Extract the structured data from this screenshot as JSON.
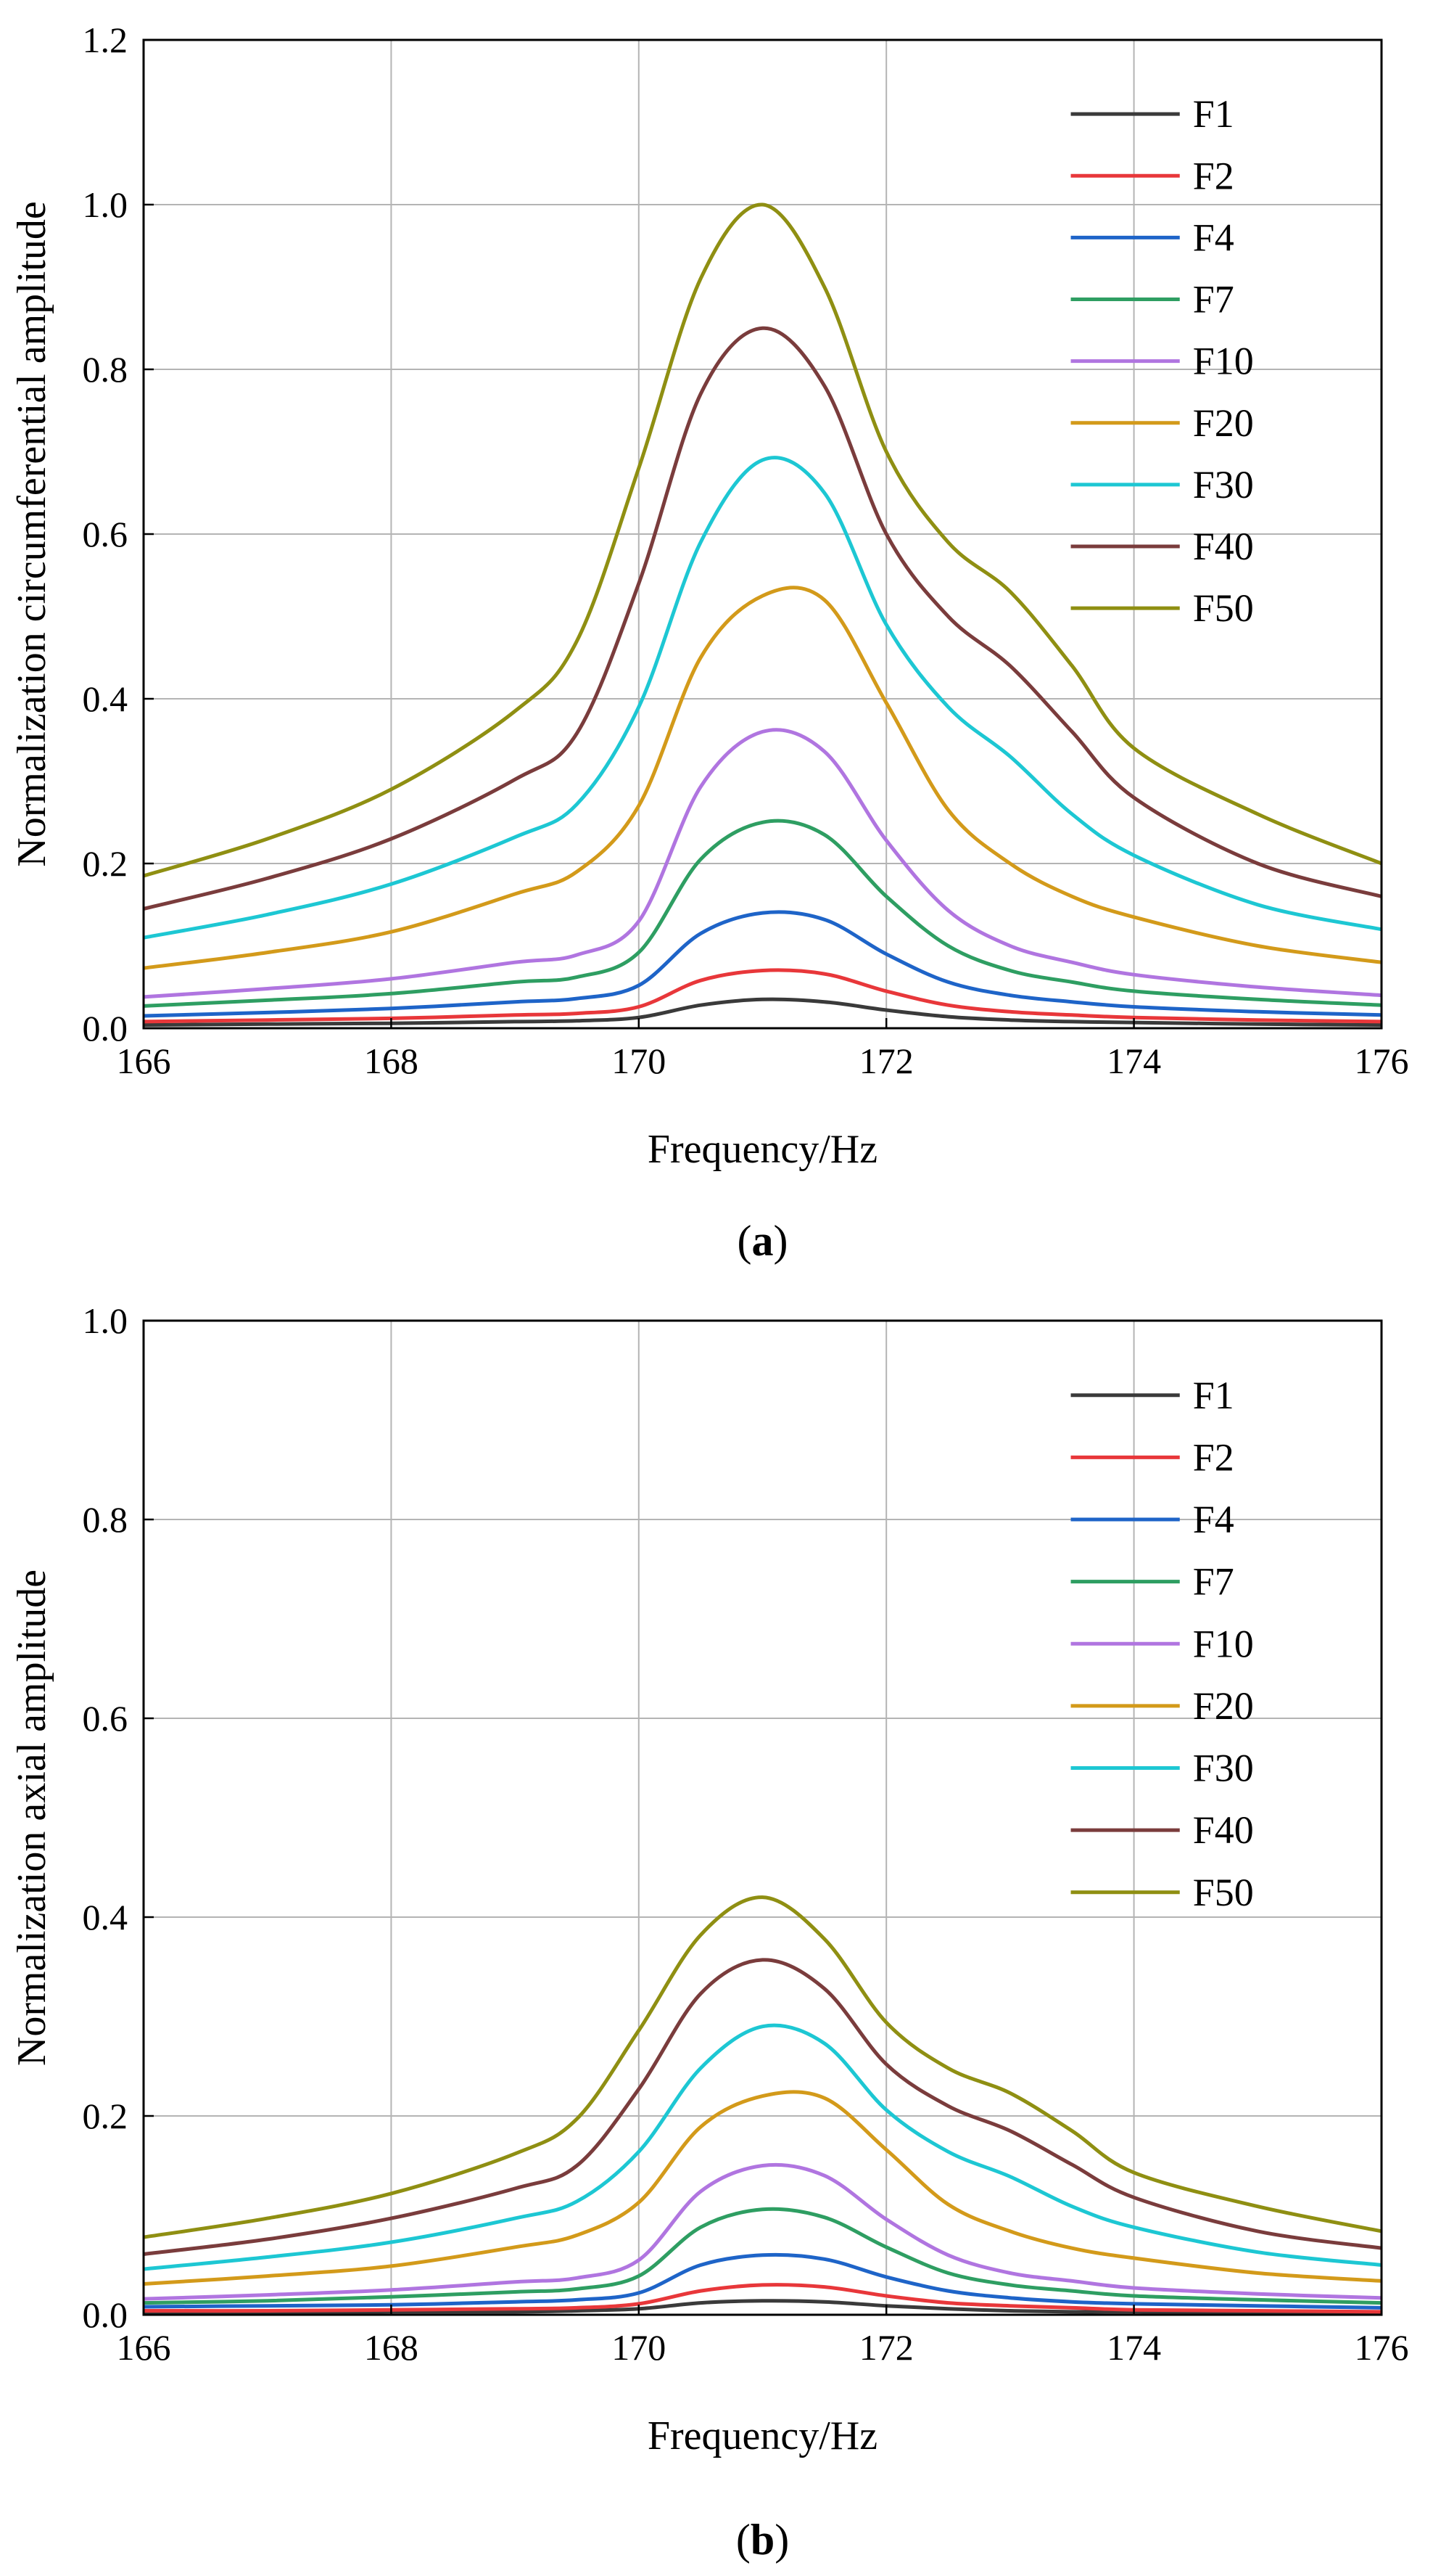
{
  "panels": [
    {
      "caption_letter": "a",
      "chart_data": {
        "type": "line",
        "xlabel": "Frequency/Hz",
        "ylabel": "Normalization circumferential amplitude",
        "xlim": [
          166,
          176
        ],
        "ylim": [
          0,
          1.2
        ],
        "xticks": [
          "166",
          "168",
          "170",
          "172",
          "174",
          "176"
        ],
        "yticks": [
          "0.0",
          "0.2",
          "0.4",
          "0.6",
          "0.8",
          "1.0",
          "1.2"
        ],
        "grid": true,
        "legend_position": "top-right",
        "x": [
          166,
          167,
          168,
          169,
          169.5,
          170,
          170.5,
          171,
          171.5,
          172,
          172.5,
          173,
          173.5,
          174,
          175,
          176
        ],
        "series": [
          {
            "name": "F1",
            "color": "#3a3a3a",
            "values": [
              0.004,
              0.005,
              0.006,
              0.008,
              0.009,
              0.013,
              0.028,
              0.035,
              0.032,
              0.022,
              0.014,
              0.01,
              0.008,
              0.007,
              0.005,
              0.004
            ]
          },
          {
            "name": "F2",
            "color": "#e8373a",
            "values": [
              0.008,
              0.01,
              0.012,
              0.016,
              0.018,
              0.026,
              0.058,
              0.07,
              0.066,
              0.045,
              0.028,
              0.02,
              0.016,
              0.013,
              0.01,
              0.008
            ]
          },
          {
            "name": "F4",
            "color": "#1e64c8",
            "values": [
              0.015,
              0.019,
              0.024,
              0.032,
              0.036,
              0.052,
              0.115,
              0.14,
              0.132,
              0.09,
              0.056,
              0.04,
              0.032,
              0.026,
              0.02,
              0.016
            ]
          },
          {
            "name": "F7",
            "color": "#2e9e62",
            "values": [
              0.027,
              0.034,
              0.042,
              0.056,
              0.062,
              0.092,
              0.205,
              0.25,
              0.235,
              0.16,
              0.1,
              0.07,
              0.056,
              0.045,
              0.035,
              0.028
            ]
          },
          {
            "name": "F10",
            "color": "#b075e0",
            "values": [
              0.038,
              0.048,
              0.06,
              0.08,
              0.089,
              0.13,
              0.293,
              0.36,
              0.336,
              0.228,
              0.143,
              0.1,
              0.08,
              0.065,
              0.05,
              0.04
            ]
          },
          {
            "name": "F20",
            "color": "#d39a1a",
            "values": [
              0.073,
              0.092,
              0.117,
              0.163,
              0.19,
              0.27,
              0.45,
              0.525,
              0.52,
              0.395,
              0.265,
              0.2,
              0.16,
              0.135,
              0.1,
              0.08
            ]
          },
          {
            "name": "F30",
            "color": "#1dc7d3",
            "values": [
              0.11,
              0.138,
              0.175,
              0.232,
              0.272,
              0.39,
              0.59,
              0.69,
              0.65,
              0.49,
              0.39,
              0.33,
              0.26,
              0.21,
              0.15,
              0.12
            ]
          },
          {
            "name": "F40",
            "color": "#7a3c3c",
            "values": [
              0.145,
              0.182,
              0.23,
              0.302,
              0.358,
              0.54,
              0.77,
              0.85,
              0.78,
              0.6,
              0.5,
              0.44,
              0.36,
              0.28,
              0.2,
              0.16
            ]
          },
          {
            "name": "F50",
            "color": "#8f8f12",
            "values": [
              0.185,
              0.23,
              0.29,
              0.385,
              0.47,
              0.68,
              0.91,
              1.0,
              0.9,
              0.7,
              0.59,
              0.53,
              0.44,
              0.34,
              0.26,
              0.2
            ]
          }
        ]
      }
    },
    {
      "caption_letter": "b",
      "chart_data": {
        "type": "line",
        "xlabel": "Frequency/Hz",
        "ylabel": "Normalization axial amplitude",
        "xlim": [
          166,
          176
        ],
        "ylim": [
          0,
          1.0
        ],
        "xticks": [
          "166",
          "168",
          "170",
          "172",
          "174",
          "176"
        ],
        "yticks": [
          "0.0",
          "0.2",
          "0.4",
          "0.6",
          "0.8",
          "1.0"
        ],
        "grid": true,
        "legend_position": "top-right",
        "x": [
          166,
          167,
          168,
          169,
          169.5,
          170,
          170.5,
          171,
          171.5,
          172,
          172.5,
          173,
          173.5,
          174,
          175,
          176
        ],
        "series": [
          {
            "name": "F1",
            "color": "#3a3a3a",
            "values": [
              0.002,
              0.002,
              0.003,
              0.003,
              0.004,
              0.006,
              0.012,
              0.014,
              0.013,
              0.009,
              0.006,
              0.004,
              0.003,
              0.003,
              0.002,
              0.002
            ]
          },
          {
            "name": "F2",
            "color": "#e8373a",
            "values": [
              0.004,
              0.004,
              0.005,
              0.006,
              0.007,
              0.011,
              0.024,
              0.03,
              0.028,
              0.019,
              0.012,
              0.009,
              0.007,
              0.005,
              0.004,
              0.003
            ]
          },
          {
            "name": "F4",
            "color": "#1e64c8",
            "values": [
              0.008,
              0.009,
              0.01,
              0.013,
              0.015,
              0.022,
              0.05,
              0.06,
              0.056,
              0.038,
              0.024,
              0.017,
              0.013,
              0.011,
              0.009,
              0.007
            ]
          },
          {
            "name": "F7",
            "color": "#2e9e62",
            "values": [
              0.012,
              0.014,
              0.018,
              0.023,
              0.026,
              0.039,
              0.088,
              0.106,
              0.098,
              0.068,
              0.042,
              0.03,
              0.024,
              0.019,
              0.015,
              0.012
            ]
          },
          {
            "name": "F10",
            "color": "#b075e0",
            "values": [
              0.016,
              0.02,
              0.025,
              0.033,
              0.037,
              0.055,
              0.124,
              0.15,
              0.14,
              0.096,
              0.06,
              0.042,
              0.034,
              0.027,
              0.021,
              0.017
            ]
          },
          {
            "name": "F20",
            "color": "#d39a1a",
            "values": [
              0.031,
              0.039,
              0.049,
              0.068,
              0.08,
              0.113,
              0.189,
              0.22,
              0.218,
              0.166,
              0.111,
              0.084,
              0.067,
              0.057,
              0.042,
              0.034
            ]
          },
          {
            "name": "F30",
            "color": "#1dc7d3",
            "values": [
              0.046,
              0.058,
              0.073,
              0.097,
              0.114,
              0.164,
              0.248,
              0.29,
              0.273,
              0.206,
              0.164,
              0.139,
              0.109,
              0.088,
              0.063,
              0.05
            ]
          },
          {
            "name": "F40",
            "color": "#7a3c3c",
            "values": [
              0.061,
              0.076,
              0.097,
              0.127,
              0.15,
              0.227,
              0.323,
              0.357,
              0.328,
              0.252,
              0.21,
              0.185,
              0.151,
              0.118,
              0.084,
              0.067
            ]
          },
          {
            "name": "F50",
            "color": "#8f8f12",
            "values": [
              0.078,
              0.097,
              0.122,
              0.162,
              0.197,
              0.286,
              0.382,
              0.42,
              0.378,
              0.294,
              0.248,
              0.223,
              0.185,
              0.143,
              0.109,
              0.084
            ]
          }
        ]
      }
    }
  ]
}
